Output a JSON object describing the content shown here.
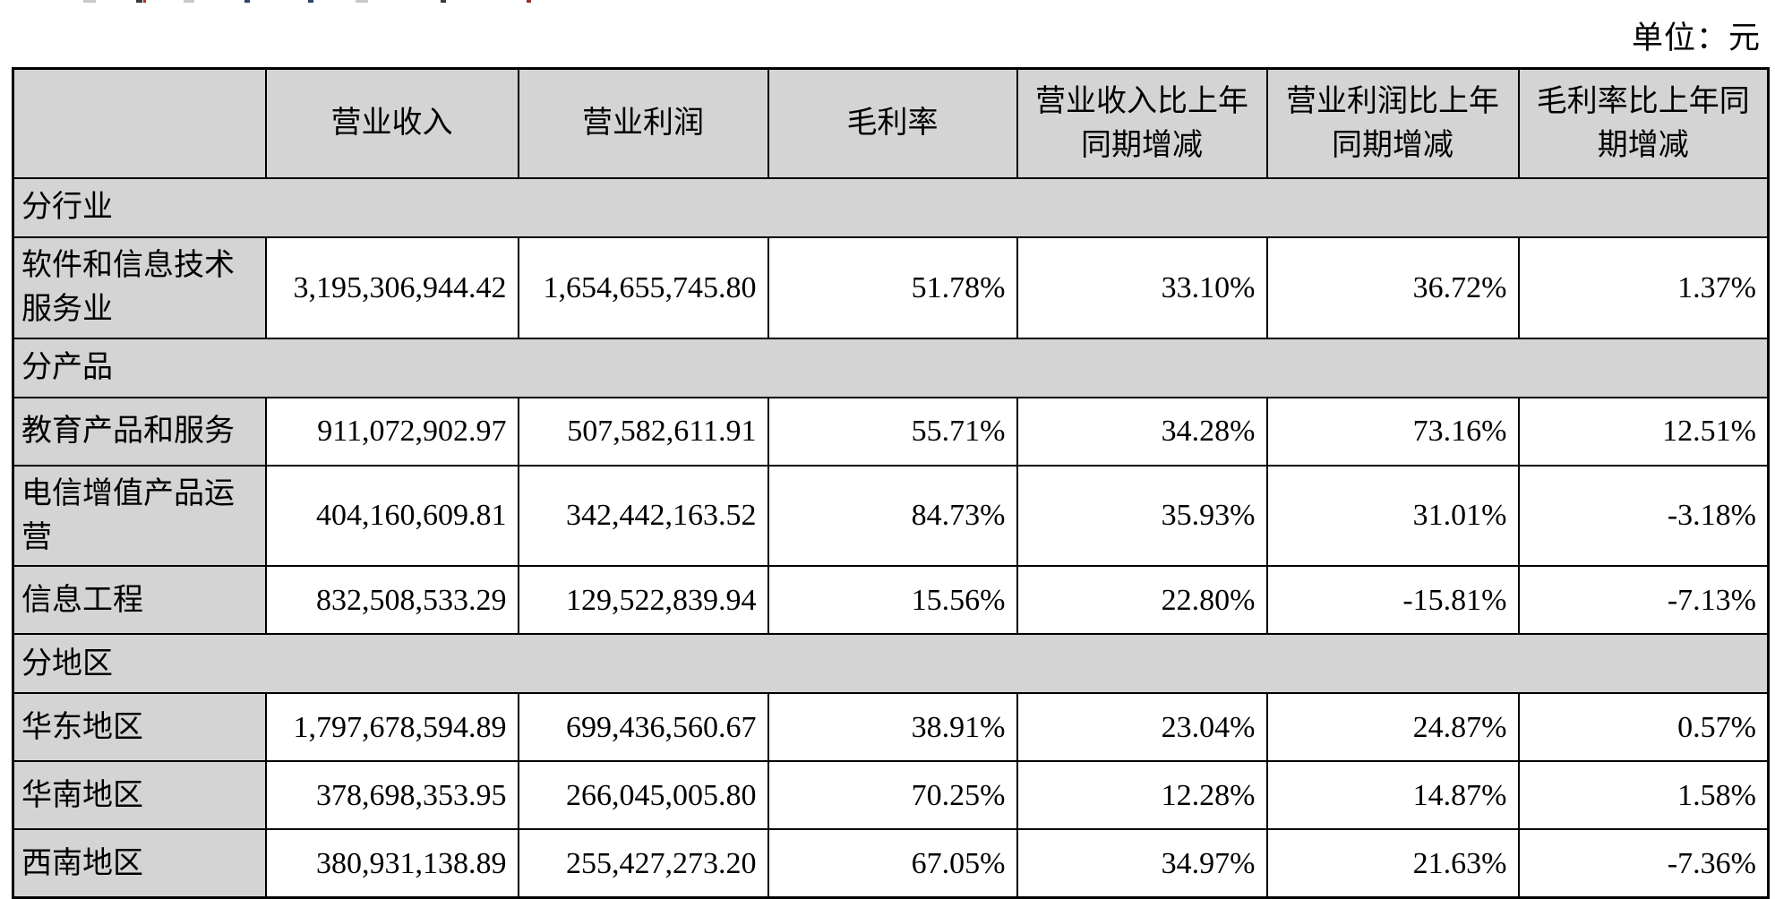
{
  "page": {
    "unit_label": "单位：元"
  },
  "table": {
    "columns": [
      "",
      "营业收入",
      "营业利润",
      "毛利率",
      "营业收入比上年同期增减",
      "营业利润比上年同期增减",
      "毛利率比上年同期增减"
    ],
    "column_names": [
      "row-label-header",
      "col-header-operating-revenue",
      "col-header-operating-profit",
      "col-header-gross-margin",
      "col-header-revenue-yoy-change",
      "col-header-profit-yoy-change",
      "col-header-margin-yoy-change"
    ],
    "sections": [
      {
        "title": "分行业",
        "rows": [
          {
            "label": "软件和信息技术服务业",
            "values": [
              "3,195,306,944.42",
              "1,654,655,745.80",
              "51.78%",
              "33.10%",
              "36.72%",
              "1.37%"
            ]
          }
        ]
      },
      {
        "title": "分产品",
        "rows": [
          {
            "label": "教育产品和服务",
            "values": [
              "911,072,902.97",
              "507,582,611.91",
              "55.71%",
              "34.28%",
              "73.16%",
              "12.51%"
            ]
          },
          {
            "label": "电信增值产品运营",
            "values": [
              "404,160,609.81",
              "342,442,163.52",
              "84.73%",
              "35.93%",
              "31.01%",
              "-3.18%"
            ]
          },
          {
            "label": "信息工程",
            "values": [
              "832,508,533.29",
              "129,522,839.94",
              "15.56%",
              "22.80%",
              "-15.81%",
              "-7.13%"
            ]
          }
        ]
      },
      {
        "title": "分地区",
        "rows": [
          {
            "label": "华东地区",
            "values": [
              "1,797,678,594.89",
              "699,436,560.67",
              "38.91%",
              "23.04%",
              "24.87%",
              "0.57%"
            ]
          },
          {
            "label": "华南地区",
            "values": [
              "378,698,353.95",
              "266,045,005.80",
              "70.25%",
              "12.28%",
              "14.87%",
              "1.58%"
            ]
          },
          {
            "label": "西南地区",
            "values": [
              "380,931,138.89",
              "255,427,273.20",
              "67.05%",
              "34.97%",
              "21.63%",
              "-7.36%"
            ]
          }
        ]
      }
    ]
  },
  "colors": {
    "cell_gray": "#d4d4d4",
    "border": "#000000",
    "text": "#000000"
  }
}
